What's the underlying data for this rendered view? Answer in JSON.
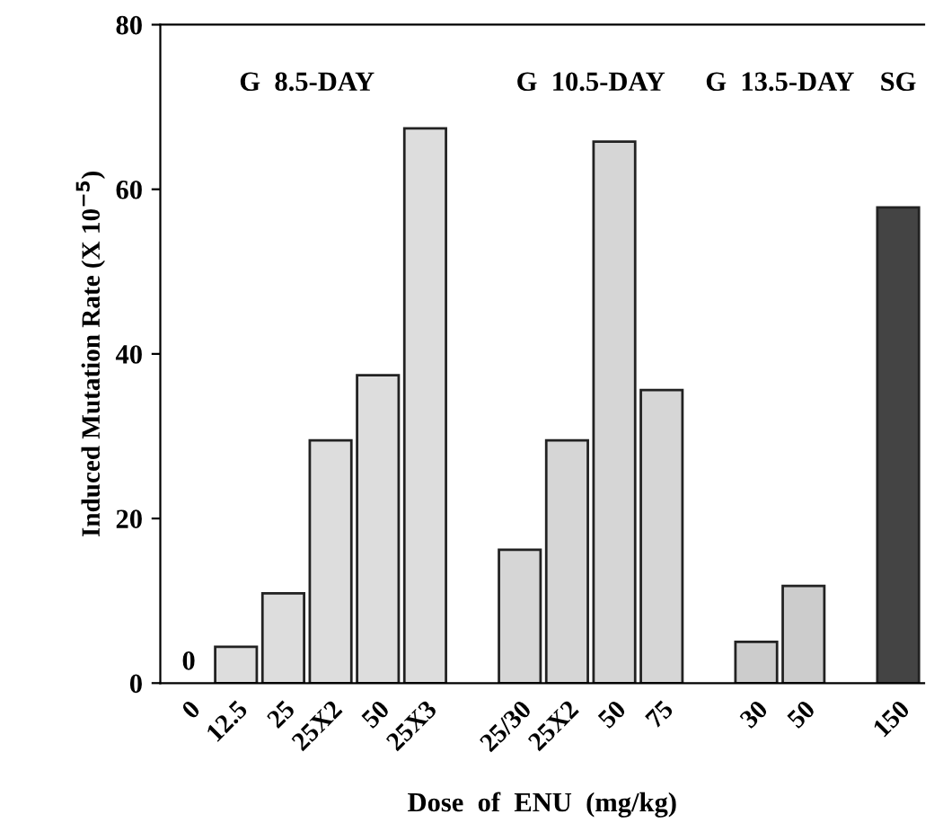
{
  "chart_data": {
    "type": "bar",
    "xlabel": "Dose  of  ENU  (mg/kg)",
    "ylabel": "Induced Mutation Rate (X 10$^{−5}$)",
    "categories": [
      "0",
      "12.5",
      "25",
      "25X2",
      "50",
      "25X3",
      null,
      "25/30",
      "25X2",
      "50",
      "75",
      null,
      "30",
      "50",
      null,
      "150"
    ],
    "values": [
      0,
      4.4,
      10.9,
      29.5,
      37.4,
      67.4,
      null,
      16.2,
      29.5,
      65.8,
      35.6,
      null,
      5.0,
      11.8,
      null,
      57.8
    ],
    "colors": [
      "#dddddd",
      "#dddddd",
      "#dddddd",
      "#dddddd",
      "#dddddd",
      "#dddddd",
      "#ffffff",
      "#d6d6d6",
      "#d6d6d6",
      "#d6d6d6",
      "#d6d6d6",
      "#ffffff",
      "#cccccc",
      "#cccccc",
      "#ffffff",
      "#444444"
    ],
    "value_labels": [
      "0",
      null,
      null,
      null,
      null,
      null,
      null,
      null,
      null,
      null,
      null,
      null,
      null,
      null,
      null,
      null
    ],
    "annotations": [
      "G  8.5-DAY",
      "G  10.5-DAY",
      "G  13.5-DAY",
      "SG"
    ],
    "ylim": [
      0,
      80
    ],
    "yticks": [
      0,
      20,
      40,
      60,
      80
    ],
    "grid": false
  }
}
